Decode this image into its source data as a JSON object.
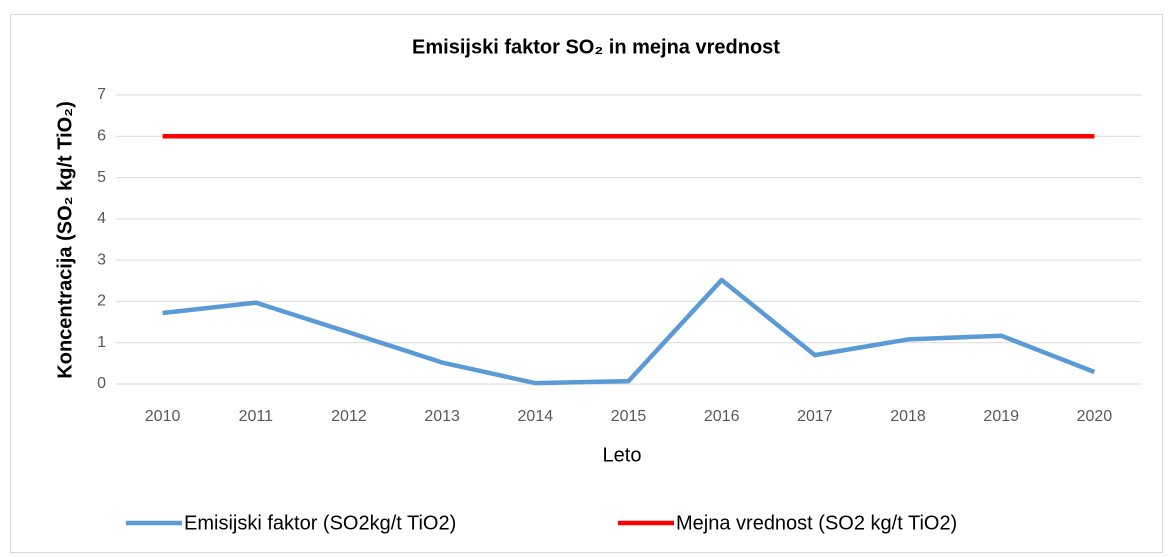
{
  "chart_data": {
    "type": "line",
    "title": "Emisijski faktor SO₂ in mejna vrednost",
    "x_label": "Leto",
    "y_label": "Koncentracija (SO₂ kg/t TiO₂)",
    "categories": [
      "2010",
      "2011",
      "2012",
      "2013",
      "2014",
      "2015",
      "2016",
      "2017",
      "2018",
      "2019",
      "2020"
    ],
    "series": [
      {
        "name": "Emisijski faktor (SO2kg/t TiO2)",
        "color": "#5b9bd5",
        "values": [
          1.72,
          1.97,
          1.25,
          0.52,
          0.02,
          0.07,
          2.52,
          0.7,
          1.08,
          1.17,
          0.29
        ]
      },
      {
        "name": "Mejna vrednost (SO2 kg/t TiO2)",
        "color": "#ff0000",
        "values": [
          6,
          6,
          6,
          6,
          6,
          6,
          6,
          6,
          6,
          6,
          6
        ]
      }
    ],
    "ylim": [
      0,
      7
    ],
    "yticks": [
      0,
      1,
      2,
      3,
      4,
      5,
      6,
      7
    ],
    "grid": true,
    "legend": "bottom"
  }
}
